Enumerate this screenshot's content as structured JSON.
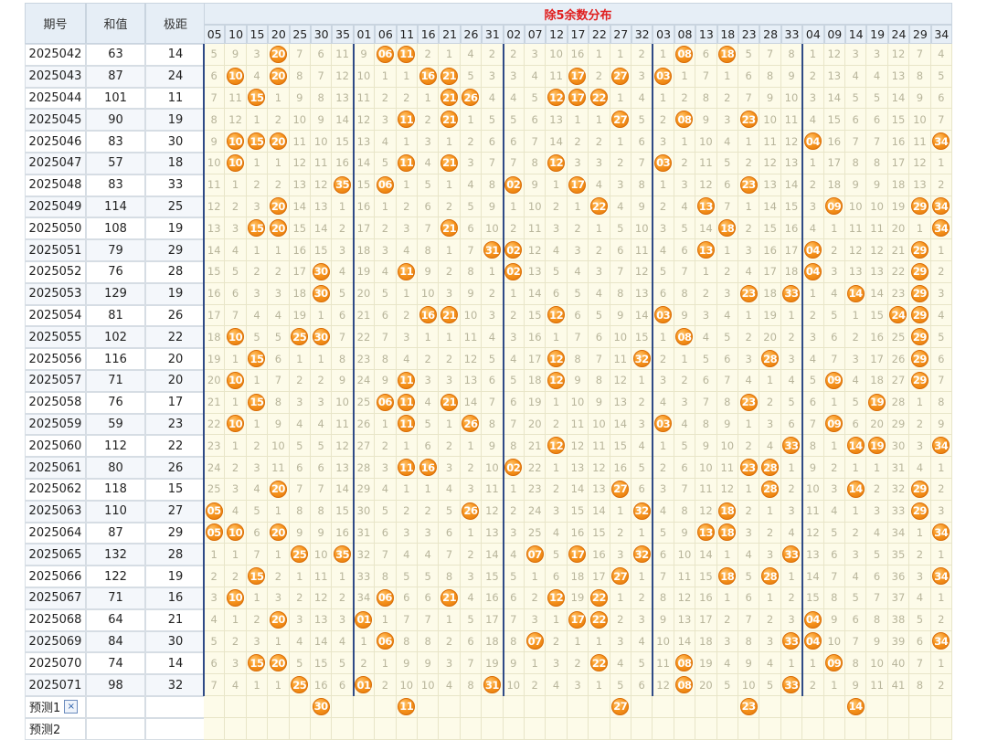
{
  "header": {
    "col_issue": "期号",
    "col_sum": "和值",
    "col_range": "极距",
    "group_title": "除5余数分布",
    "numbers": [
      "05",
      "10",
      "15",
      "20",
      "25",
      "30",
      "35",
      "01",
      "06",
      "11",
      "16",
      "21",
      "26",
      "31",
      "02",
      "07",
      "12",
      "17",
      "22",
      "27",
      "32",
      "03",
      "08",
      "13",
      "18",
      "23",
      "28",
      "33",
      "04",
      "09",
      "14",
      "19",
      "24",
      "29",
      "34"
    ]
  },
  "rows": [
    {
      "issue": "2025042",
      "sum": "63",
      "range": "14",
      "cells": [
        "5",
        "9",
        "3",
        "20",
        "7",
        "6",
        "11",
        "9",
        "06",
        "11",
        "2",
        "1",
        "4",
        "2",
        "2",
        "3",
        "10",
        "16",
        "1",
        "1",
        "2",
        "1",
        "08",
        "6",
        "18",
        "5",
        "7",
        "8",
        "1",
        "12",
        "3",
        "3",
        "12",
        "7",
        "4"
      ]
    },
    {
      "issue": "2025043",
      "sum": "87",
      "range": "24",
      "cells": [
        "6",
        "10",
        "4",
        "20",
        "8",
        "7",
        "12",
        "10",
        "1",
        "1",
        "16",
        "21",
        "5",
        "3",
        "3",
        "4",
        "11",
        "17",
        "2",
        "27",
        "3",
        "03",
        "1",
        "7",
        "1",
        "6",
        "8",
        "9",
        "2",
        "13",
        "4",
        "4",
        "13",
        "8",
        "5"
      ]
    },
    {
      "issue": "2025044",
      "sum": "101",
      "range": "11",
      "cells": [
        "7",
        "11",
        "15",
        "1",
        "9",
        "8",
        "13",
        "11",
        "2",
        "2",
        "1",
        "21",
        "26",
        "4",
        "4",
        "5",
        "12",
        "17",
        "22",
        "1",
        "4",
        "1",
        "2",
        "8",
        "2",
        "7",
        "9",
        "10",
        "3",
        "14",
        "5",
        "5",
        "14",
        "9",
        "6"
      ]
    },
    {
      "issue": "2025045",
      "sum": "90",
      "range": "19",
      "cells": [
        "8",
        "12",
        "1",
        "2",
        "10",
        "9",
        "14",
        "12",
        "3",
        "11",
        "2",
        "21",
        "1",
        "5",
        "5",
        "6",
        "13",
        "1",
        "1",
        "27",
        "5",
        "2",
        "08",
        "9",
        "3",
        "23",
        "10",
        "11",
        "4",
        "15",
        "6",
        "6",
        "15",
        "10",
        "7"
      ]
    },
    {
      "issue": "2025046",
      "sum": "83",
      "range": "30",
      "cells": [
        "9",
        "10",
        "15",
        "20",
        "11",
        "10",
        "15",
        "13",
        "4",
        "1",
        "3",
        "1",
        "2",
        "6",
        "6",
        "7",
        "14",
        "2",
        "2",
        "1",
        "6",
        "3",
        "1",
        "10",
        "4",
        "1",
        "11",
        "12",
        "04",
        "16",
        "7",
        "7",
        "16",
        "11",
        "34"
      ]
    },
    {
      "issue": "2025047",
      "sum": "57",
      "range": "18",
      "cells": [
        "10",
        "10",
        "1",
        "1",
        "12",
        "11",
        "16",
        "14",
        "5",
        "11",
        "4",
        "21",
        "3",
        "7",
        "7",
        "8",
        "12",
        "3",
        "3",
        "2",
        "7",
        "03",
        "2",
        "11",
        "5",
        "2",
        "12",
        "13",
        "1",
        "17",
        "8",
        "8",
        "17",
        "12",
        "1"
      ]
    },
    {
      "issue": "2025048",
      "sum": "83",
      "range": "33",
      "cells": [
        "11",
        "1",
        "2",
        "2",
        "13",
        "12",
        "35",
        "15",
        "06",
        "1",
        "5",
        "1",
        "4",
        "8",
        "02",
        "9",
        "1",
        "17",
        "4",
        "3",
        "8",
        "1",
        "3",
        "12",
        "6",
        "23",
        "13",
        "14",
        "2",
        "18",
        "9",
        "9",
        "18",
        "13",
        "2"
      ]
    },
    {
      "issue": "2025049",
      "sum": "114",
      "range": "25",
      "cells": [
        "12",
        "2",
        "3",
        "20",
        "14",
        "13",
        "1",
        "16",
        "1",
        "2",
        "6",
        "2",
        "5",
        "9",
        "1",
        "10",
        "2",
        "1",
        "22",
        "4",
        "9",
        "2",
        "4",
        "13",
        "7",
        "1",
        "14",
        "15",
        "3",
        "09",
        "10",
        "10",
        "19",
        "29",
        "34"
      ]
    },
    {
      "issue": "2025050",
      "sum": "108",
      "range": "19",
      "cells": [
        "13",
        "3",
        "15",
        "20",
        "15",
        "14",
        "2",
        "17",
        "2",
        "3",
        "7",
        "21",
        "6",
        "10",
        "2",
        "11",
        "3",
        "2",
        "1",
        "5",
        "10",
        "3",
        "5",
        "14",
        "18",
        "2",
        "15",
        "16",
        "4",
        "1",
        "11",
        "11",
        "20",
        "1",
        "34"
      ]
    },
    {
      "issue": "2025051",
      "sum": "79",
      "range": "29",
      "cells": [
        "14",
        "4",
        "1",
        "1",
        "16",
        "15",
        "3",
        "18",
        "3",
        "4",
        "8",
        "1",
        "7",
        "31",
        "02",
        "12",
        "4",
        "3",
        "2",
        "6",
        "11",
        "4",
        "6",
        "13",
        "1",
        "3",
        "16",
        "17",
        "04",
        "2",
        "12",
        "12",
        "21",
        "29",
        "1"
      ]
    },
    {
      "issue": "2025052",
      "sum": "76",
      "range": "28",
      "cells": [
        "15",
        "5",
        "2",
        "2",
        "17",
        "30",
        "4",
        "19",
        "4",
        "11",
        "9",
        "2",
        "8",
        "1",
        "02",
        "13",
        "5",
        "4",
        "3",
        "7",
        "12",
        "5",
        "7",
        "1",
        "2",
        "4",
        "17",
        "18",
        "04",
        "3",
        "13",
        "13",
        "22",
        "29",
        "2"
      ]
    },
    {
      "issue": "2025053",
      "sum": "129",
      "range": "19",
      "cells": [
        "16",
        "6",
        "3",
        "3",
        "18",
        "30",
        "5",
        "20",
        "5",
        "1",
        "10",
        "3",
        "9",
        "2",
        "1",
        "14",
        "6",
        "5",
        "4",
        "8",
        "13",
        "6",
        "8",
        "2",
        "3",
        "23",
        "18",
        "33",
        "1",
        "4",
        "14",
        "14",
        "23",
        "29",
        "3"
      ]
    },
    {
      "issue": "2025054",
      "sum": "81",
      "range": "26",
      "cells": [
        "17",
        "7",
        "4",
        "4",
        "19",
        "1",
        "6",
        "21",
        "6",
        "2",
        "16",
        "21",
        "10",
        "3",
        "2",
        "15",
        "12",
        "6",
        "5",
        "9",
        "14",
        "03",
        "9",
        "3",
        "4",
        "1",
        "19",
        "1",
        "2",
        "5",
        "1",
        "15",
        "24",
        "29",
        "4"
      ]
    },
    {
      "issue": "2025055",
      "sum": "102",
      "range": "22",
      "cells": [
        "18",
        "10",
        "5",
        "5",
        "25",
        "30",
        "7",
        "22",
        "7",
        "3",
        "1",
        "1",
        "11",
        "4",
        "3",
        "16",
        "1",
        "7",
        "6",
        "10",
        "15",
        "1",
        "08",
        "4",
        "5",
        "2",
        "20",
        "2",
        "3",
        "6",
        "2",
        "16",
        "25",
        "29",
        "5"
      ]
    },
    {
      "issue": "2025056",
      "sum": "116",
      "range": "20",
      "cells": [
        "19",
        "1",
        "15",
        "6",
        "1",
        "1",
        "8",
        "23",
        "8",
        "4",
        "2",
        "2",
        "12",
        "5",
        "4",
        "17",
        "12",
        "8",
        "7",
        "11",
        "32",
        "2",
        "1",
        "5",
        "6",
        "3",
        "28",
        "3",
        "4",
        "7",
        "3",
        "17",
        "26",
        "29",
        "6"
      ]
    },
    {
      "issue": "2025057",
      "sum": "71",
      "range": "20",
      "cells": [
        "20",
        "10",
        "1",
        "7",
        "2",
        "2",
        "9",
        "24",
        "9",
        "11",
        "3",
        "3",
        "13",
        "6",
        "5",
        "18",
        "12",
        "9",
        "8",
        "12",
        "1",
        "3",
        "2",
        "6",
        "7",
        "4",
        "1",
        "4",
        "5",
        "09",
        "4",
        "18",
        "27",
        "29",
        "7"
      ]
    },
    {
      "issue": "2025058",
      "sum": "76",
      "range": "17",
      "cells": [
        "21",
        "1",
        "15",
        "8",
        "3",
        "3",
        "10",
        "25",
        "06",
        "11",
        "4",
        "21",
        "14",
        "7",
        "6",
        "19",
        "1",
        "10",
        "9",
        "13",
        "2",
        "4",
        "3",
        "7",
        "8",
        "23",
        "2",
        "5",
        "6",
        "1",
        "5",
        "19",
        "28",
        "1",
        "8"
      ]
    },
    {
      "issue": "2025059",
      "sum": "59",
      "range": "23",
      "cells": [
        "22",
        "10",
        "1",
        "9",
        "4",
        "4",
        "11",
        "26",
        "1",
        "11",
        "5",
        "1",
        "26",
        "8",
        "7",
        "20",
        "2",
        "11",
        "10",
        "14",
        "3",
        "03",
        "4",
        "8",
        "9",
        "1",
        "3",
        "6",
        "7",
        "09",
        "6",
        "20",
        "29",
        "2",
        "9"
      ]
    },
    {
      "issue": "2025060",
      "sum": "112",
      "range": "22",
      "cells": [
        "23",
        "1",
        "2",
        "10",
        "5",
        "5",
        "12",
        "27",
        "2",
        "1",
        "6",
        "2",
        "1",
        "9",
        "8",
        "21",
        "12",
        "12",
        "11",
        "15",
        "4",
        "1",
        "5",
        "9",
        "10",
        "2",
        "4",
        "33",
        "8",
        "1",
        "14",
        "19",
        "30",
        "3",
        "34"
      ]
    },
    {
      "issue": "2025061",
      "sum": "80",
      "range": "26",
      "cells": [
        "24",
        "2",
        "3",
        "11",
        "6",
        "6",
        "13",
        "28",
        "3",
        "11",
        "16",
        "3",
        "2",
        "10",
        "02",
        "22",
        "1",
        "13",
        "12",
        "16",
        "5",
        "2",
        "6",
        "10",
        "11",
        "23",
        "28",
        "1",
        "9",
        "2",
        "1",
        "1",
        "31",
        "4",
        "1"
      ]
    },
    {
      "issue": "2025062",
      "sum": "118",
      "range": "15",
      "cells": [
        "25",
        "3",
        "4",
        "20",
        "7",
        "7",
        "14",
        "29",
        "4",
        "1",
        "1",
        "4",
        "3",
        "11",
        "1",
        "23",
        "2",
        "14",
        "13",
        "27",
        "6",
        "3",
        "7",
        "11",
        "12",
        "1",
        "28",
        "2",
        "10",
        "3",
        "14",
        "2",
        "32",
        "29",
        "2"
      ]
    },
    {
      "issue": "2025063",
      "sum": "110",
      "range": "27",
      "cells": [
        "05",
        "4",
        "5",
        "1",
        "8",
        "8",
        "15",
        "30",
        "5",
        "2",
        "2",
        "5",
        "26",
        "12",
        "2",
        "24",
        "3",
        "15",
        "14",
        "1",
        "32",
        "4",
        "8",
        "12",
        "18",
        "2",
        "1",
        "3",
        "11",
        "4",
        "1",
        "3",
        "33",
        "29",
        "3"
      ]
    },
    {
      "issue": "2025064",
      "sum": "87",
      "range": "29",
      "cells": [
        "05",
        "10",
        "6",
        "20",
        "9",
        "9",
        "16",
        "31",
        "6",
        "3",
        "3",
        "6",
        "1",
        "13",
        "3",
        "25",
        "4",
        "16",
        "15",
        "2",
        "1",
        "5",
        "9",
        "13",
        "18",
        "3",
        "2",
        "4",
        "12",
        "5",
        "2",
        "4",
        "34",
        "1",
        "34"
      ]
    },
    {
      "issue": "2025065",
      "sum": "132",
      "range": "28",
      "cells": [
        "1",
        "1",
        "7",
        "1",
        "25",
        "10",
        "35",
        "32",
        "7",
        "4",
        "4",
        "7",
        "2",
        "14",
        "4",
        "07",
        "5",
        "17",
        "16",
        "3",
        "32",
        "6",
        "10",
        "14",
        "1",
        "4",
        "3",
        "33",
        "13",
        "6",
        "3",
        "5",
        "35",
        "2",
        "1"
      ]
    },
    {
      "issue": "2025066",
      "sum": "122",
      "range": "19",
      "cells": [
        "2",
        "2",
        "15",
        "2",
        "1",
        "11",
        "1",
        "33",
        "8",
        "5",
        "5",
        "8",
        "3",
        "15",
        "5",
        "1",
        "6",
        "18",
        "17",
        "27",
        "1",
        "7",
        "11",
        "15",
        "18",
        "5",
        "28",
        "1",
        "14",
        "7",
        "4",
        "6",
        "36",
        "3",
        "34"
      ]
    },
    {
      "issue": "2025067",
      "sum": "71",
      "range": "16",
      "cells": [
        "3",
        "10",
        "1",
        "3",
        "2",
        "12",
        "2",
        "34",
        "06",
        "6",
        "6",
        "21",
        "4",
        "16",
        "6",
        "2",
        "12",
        "19",
        "22",
        "1",
        "2",
        "8",
        "12",
        "16",
        "1",
        "6",
        "1",
        "2",
        "15",
        "8",
        "5",
        "7",
        "37",
        "4",
        "1"
      ]
    },
    {
      "issue": "2025068",
      "sum": "64",
      "range": "21",
      "cells": [
        "4",
        "1",
        "2",
        "20",
        "3",
        "13",
        "3",
        "01",
        "1",
        "7",
        "7",
        "1",
        "5",
        "17",
        "7",
        "3",
        "1",
        "17",
        "22",
        "2",
        "3",
        "9",
        "13",
        "17",
        "2",
        "7",
        "2",
        "3",
        "04",
        "9",
        "6",
        "8",
        "38",
        "5",
        "2"
      ]
    },
    {
      "issue": "2025069",
      "sum": "84",
      "range": "30",
      "cells": [
        "5",
        "2",
        "3",
        "1",
        "4",
        "14",
        "4",
        "1",
        "06",
        "8",
        "8",
        "2",
        "6",
        "18",
        "8",
        "07",
        "2",
        "1",
        "1",
        "3",
        "4",
        "10",
        "14",
        "18",
        "3",
        "8",
        "3",
        "33",
        "04",
        "10",
        "7",
        "9",
        "39",
        "6",
        "34"
      ]
    },
    {
      "issue": "2025070",
      "sum": "74",
      "range": "14",
      "cells": [
        "6",
        "3",
        "15",
        "20",
        "5",
        "15",
        "5",
        "2",
        "1",
        "9",
        "9",
        "3",
        "7",
        "19",
        "9",
        "1",
        "3",
        "2",
        "22",
        "4",
        "5",
        "11",
        "08",
        "19",
        "4",
        "9",
        "4",
        "1",
        "1",
        "09",
        "8",
        "10",
        "40",
        "7",
        "1"
      ]
    },
    {
      "issue": "2025071",
      "sum": "98",
      "range": "32",
      "cells": [
        "7",
        "4",
        "1",
        "1",
        "25",
        "16",
        "6",
        "01",
        "2",
        "10",
        "10",
        "4",
        "8",
        "31",
        "10",
        "2",
        "4",
        "3",
        "1",
        "5",
        "6",
        "12",
        "08",
        "20",
        "5",
        "10",
        "5",
        "33",
        "2",
        "1",
        "9",
        "11",
        "41",
        "8",
        "2"
      ]
    }
  ],
  "prediction_rows": [
    {
      "label": "预测1",
      "close": "×",
      "balls": [
        "",
        "",
        "",
        "",
        "",
        "30",
        "",
        "",
        "",
        "11",
        "",
        "",
        "",
        "",
        "",
        "",
        "",
        "",
        "",
        "27",
        "",
        "",
        "",
        "",
        "",
        "23",
        "",
        "",
        "",
        "",
        "14",
        "",
        "",
        "",
        ""
      ]
    },
    {
      "label": "预测2",
      "close": "",
      "balls": [
        "",
        "",
        "",
        "",
        "",
        "",
        "",
        "",
        "",
        "",
        "",
        "",
        "",
        "",
        "",
        "",
        "",
        "",
        "",
        "",
        "",
        "",
        "",
        "",
        "",
        "",
        "",
        "",
        "",
        "",
        "",
        "",
        "",
        "",
        ""
      ]
    }
  ]
}
